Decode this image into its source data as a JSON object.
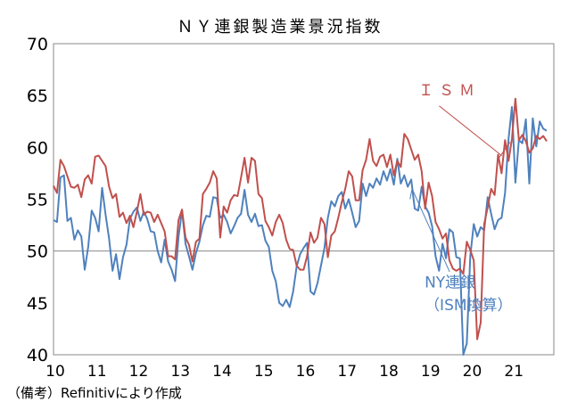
{
  "chart_data": {
    "type": "line",
    "title": "ＮＹ連銀製造業景況指数",
    "xlabel": "",
    "ylabel": "",
    "ylim": [
      40,
      70
    ],
    "yticks": [
      "40",
      "45",
      "50",
      "55",
      "60",
      "65",
      "70"
    ],
    "xlim": [
      2010,
      2022
    ],
    "xticks": [
      "10",
      "11",
      "12",
      "13",
      "14",
      "15",
      "16",
      "17",
      "18",
      "19",
      "20",
      "21"
    ],
    "reference_line": 50,
    "grid": false,
    "series": [
      {
        "name": "ＩＳＭ",
        "color": "#c0504d",
        "x_start": 2010,
        "step": 0.0833,
        "values": [
          56.3,
          55.6,
          58.8,
          58.2,
          57.2,
          56.2,
          56.1,
          56.4,
          55.2,
          56.9,
          57.3,
          56.5,
          59.1,
          59.2,
          58.7,
          58.2,
          56.2,
          55.1,
          55.5,
          53.3,
          53.7,
          52.7,
          53.4,
          52.3,
          53.8,
          55.5,
          53.5,
          53.8,
          53.7,
          52.8,
          53.5,
          52.7,
          51.9,
          49.5,
          49.5,
          49.2,
          53.0,
          54.0,
          51.3,
          50.6,
          49.0,
          50.9,
          51.2,
          55.5,
          56.0,
          56.6,
          57.7,
          57.0,
          51.3,
          54.3,
          53.7,
          54.9,
          55.4,
          55.3,
          57.1,
          59.0,
          56.6,
          59.0,
          58.7,
          55.5,
          55.1,
          52.9,
          52.3,
          51.5,
          52.8,
          53.5,
          52.7,
          51.1,
          50.2,
          50.1,
          48.6,
          48.2,
          48.2,
          49.5,
          51.8,
          50.8,
          51.3,
          53.2,
          52.6,
          49.4,
          51.5,
          51.9,
          53.2,
          54.7,
          56.0,
          57.7,
          57.2,
          54.9,
          54.9,
          57.8,
          58.8,
          60.8,
          58.7,
          58.2,
          59.1,
          59.3,
          58.1,
          59.3,
          57.3,
          58.7,
          58.1,
          61.3,
          60.8,
          59.8,
          58.8,
          59.3,
          57.7,
          54.1,
          56.6,
          55.3,
          52.8,
          52.1,
          51.2,
          51.7,
          49.1,
          48.3,
          48.1,
          48.3,
          47.8,
          50.9,
          50.1,
          49.1,
          41.5,
          43.1,
          52.6,
          54.2,
          56.0,
          55.4,
          59.3,
          57.5,
          60.7,
          58.7,
          60.8,
          64.7,
          60.7,
          61.2,
          60.6,
          59.5,
          59.9,
          61.1,
          60.8,
          61.1,
          60.6
        ]
      },
      {
        "name": "NY連銀\n（ISM換算）",
        "color": "#4f81bd",
        "x_start": 2010,
        "step": 0.0833,
        "values": [
          53.0,
          52.8,
          57.1,
          57.3,
          52.9,
          53.2,
          51.1,
          52.0,
          51.4,
          48.2,
          50.4,
          53.9,
          53.2,
          51.9,
          56.1,
          53.5,
          51.2,
          48.1,
          49.7,
          47.3,
          49.4,
          50.6,
          53.1,
          53.8,
          54.2,
          52.9,
          53.8,
          53.1,
          51.9,
          51.8,
          50.0,
          48.9,
          51.1,
          49.0,
          48.2,
          47.1,
          51.4,
          53.9,
          50.7,
          49.5,
          48.2,
          49.8,
          50.9,
          52.5,
          53.4,
          53.3,
          55.2,
          55.1,
          53.2,
          53.5,
          52.8,
          51.7,
          52.4,
          53.2,
          53.6,
          55.9,
          53.5,
          52.8,
          53.6,
          52.4,
          52.5,
          51.0,
          50.4,
          48.1,
          47.1,
          45.0,
          44.7,
          45.3,
          44.6,
          46.1,
          48.5,
          49.7,
          50.3,
          50.8,
          46.1,
          45.8,
          46.9,
          48.6,
          50.3,
          53.2,
          54.8,
          54.3,
          55.3,
          55.7,
          54.1,
          55.0,
          53.7,
          52.3,
          52.9,
          56.5,
          55.3,
          56.5,
          56.1,
          57.0,
          56.4,
          57.7,
          56.8,
          57.9,
          56.4,
          58.9,
          56.5,
          57.3,
          56.2,
          56.9,
          54.1,
          53.9,
          56.2,
          54.3,
          53.7,
          52.4,
          49.5,
          48.1,
          50.7,
          49.3,
          52.1,
          51.8,
          49.4,
          49.3,
          40.0,
          41.1,
          49.5,
          52.6,
          51.4,
          52.3,
          52.0,
          55.2,
          53.6,
          52.1,
          53.0,
          53.2,
          55.6,
          60.8,
          63.9,
          56.6,
          60.7,
          60.4,
          62.7,
          56.5,
          62.8,
          60.1,
          62.5,
          61.8,
          61.6
        ]
      }
    ],
    "annotations": [
      {
        "text": "ＩＳＭ",
        "color": "#c0504d",
        "x": 2018.75,
        "y": 65.0
      },
      {
        "text": "NY連銀",
        "color": "#4f81bd",
        "x": 2018.9,
        "y": 46.5
      },
      {
        "text": "（ISM換算）",
        "color": "#4f81bd",
        "x": 2018.9,
        "y": 44.3
      }
    ]
  },
  "footer": {
    "note": "（備考）Refinitivにより作成"
  }
}
